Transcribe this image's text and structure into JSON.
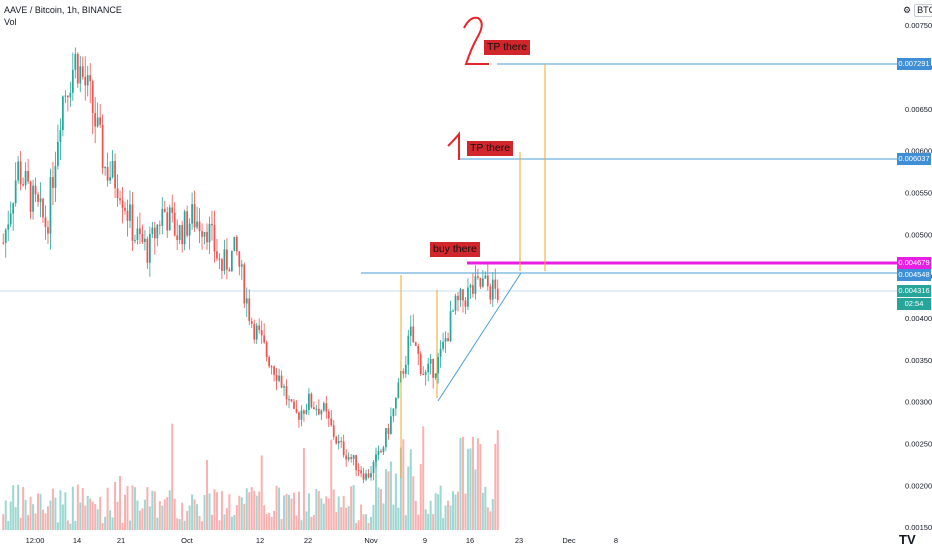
{
  "header": {
    "ticker": "AAVE / Bitcoin, 1h, BINANCE",
    "volume_label": "Vol",
    "settings_icon": "gear-icon",
    "currency": "BTC",
    "gear_glyph": "⚙"
  },
  "annotations": {
    "tp2_number": "2",
    "tp2_label": "TP there",
    "tp1_number": "1",
    "tp1_label": "TP there",
    "buy_label": "buy there"
  },
  "price_labels": {
    "tp2": "0.007291",
    "tp1": "0.006037",
    "buy": "0.004679",
    "resistance": "0.004548",
    "current": "0.004316",
    "countdown": "02:54"
  },
  "colors": {
    "up": "#26a69a",
    "down": "#ef5350",
    "level_line": "#4a9fd8",
    "buy_line": "#e91ee3",
    "tp_drop": "#f5a623",
    "annotation_bg": "#d1262c",
    "annotation_stroke": "#e5262c"
  },
  "logo": "TV",
  "chart_data": {
    "type": "candlestick",
    "title": "AAVE / Bitcoin, 1h, BINANCE",
    "y_axis": {
      "ticks": [
        "0.007500",
        "0.007000",
        "0.006500",
        "0.006000",
        "0.005500",
        "0.005000",
        "0.004500",
        "0.004000",
        "0.003500",
        "0.003000",
        "0.002500",
        "0.002000",
        "0.001500"
      ],
      "ylim": [
        0.00125,
        0.0078
      ]
    },
    "x_axis": {
      "ticks": [
        "12:00",
        "14",
        "21",
        "Oct",
        "12",
        "22",
        "Nov",
        "9",
        "16",
        "23",
        "Dec",
        "8"
      ]
    },
    "grid": false,
    "price_path": [
      {
        "date": "Sep 10",
        "price": 0.0049
      },
      {
        "date": "Sep 11",
        "price": 0.0058
      },
      {
        "date": "Sep 12",
        "price": 0.0054
      },
      {
        "date": "Sep 13",
        "price": 0.0051
      },
      {
        "date": "Sep 14",
        "price": 0.0066
      },
      {
        "date": "Sep 15",
        "price": 0.0071
      },
      {
        "date": "Sep 17",
        "price": 0.0066
      },
      {
        "date": "Sep 19",
        "price": 0.0058
      },
      {
        "date": "Sep 21",
        "price": 0.0056
      },
      {
        "date": "Sep 22",
        "price": 0.005
      },
      {
        "date": "Sep 24",
        "price": 0.0048
      },
      {
        "date": "Sep 27",
        "price": 0.0053
      },
      {
        "date": "Sep 30",
        "price": 0.005
      },
      {
        "date": "Oct 3",
        "price": 0.0052
      },
      {
        "date": "Oct 6",
        "price": 0.0051
      },
      {
        "date": "Oct 9",
        "price": 0.0046
      },
      {
        "date": "Oct 12",
        "price": 0.0048
      },
      {
        "date": "Oct 14",
        "price": 0.004
      },
      {
        "date": "Oct 17",
        "price": 0.0036
      },
      {
        "date": "Oct 20",
        "price": 0.0033
      },
      {
        "date": "Oct 22",
        "price": 0.0028
      },
      {
        "date": "Oct 24",
        "price": 0.003
      },
      {
        "date": "Oct 26",
        "price": 0.0029
      },
      {
        "date": "Oct 29",
        "price": 0.0025
      },
      {
        "date": "Nov 1",
        "price": 0.0023
      },
      {
        "date": "Nov 4",
        "price": 0.0021
      },
      {
        "date": "Nov 6",
        "price": 0.0024
      },
      {
        "date": "Nov 8",
        "price": 0.003
      },
      {
        "date": "Nov 9",
        "price": 0.0038
      },
      {
        "date": "Nov 11",
        "price": 0.0033
      },
      {
        "date": "Nov 13",
        "price": 0.0035
      },
      {
        "date": "Nov 15",
        "price": 0.0041
      },
      {
        "date": "Nov 17",
        "price": 0.0043
      },
      {
        "date": "Nov 19",
        "price": 0.0044
      },
      {
        "date": "Nov 20",
        "price": 0.0043
      }
    ],
    "levels": [
      {
        "name": "TP 2",
        "price": 0.007291
      },
      {
        "name": "TP 1",
        "price": 0.006037
      },
      {
        "name": "buy",
        "price": 0.004679
      },
      {
        "name": "resistance",
        "price": 0.004548
      },
      {
        "name": "current",
        "price": 0.004316
      }
    ]
  }
}
